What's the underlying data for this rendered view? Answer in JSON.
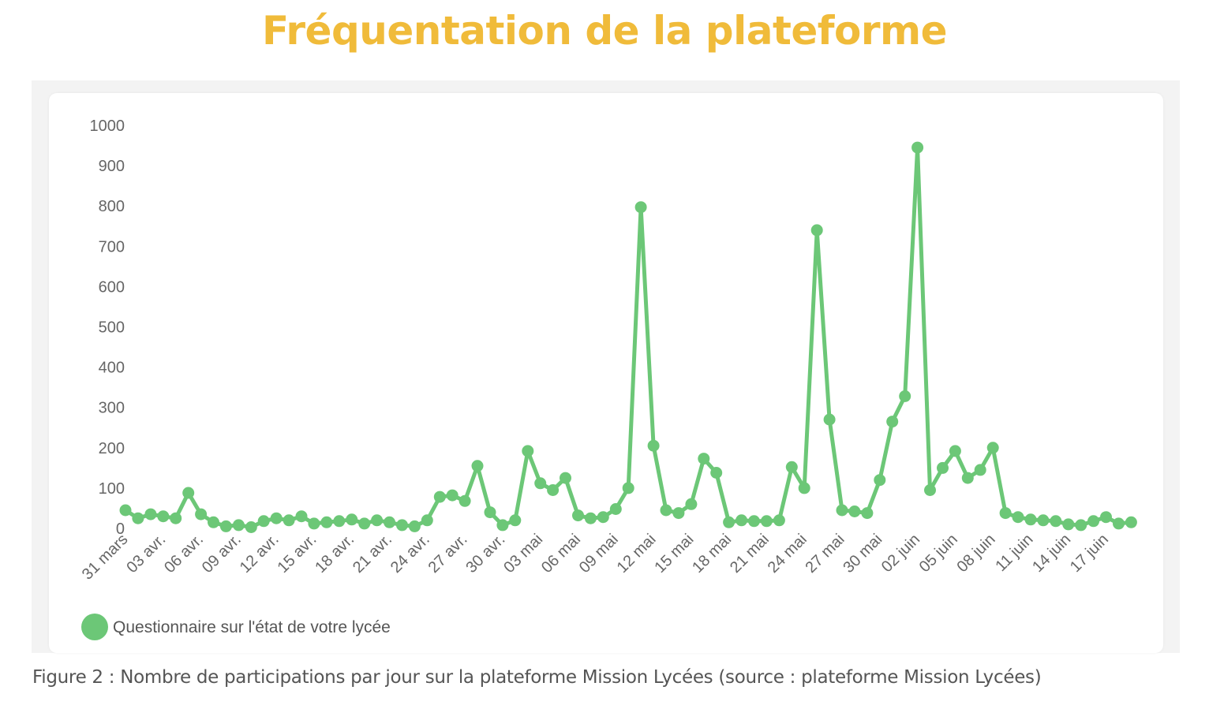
{
  "page": {
    "heading": "Fréquentation de la plateforme",
    "caption": "Figure 2 : Nombre de participations par jour sur la plateforme Mission Lycées (source : plateforme Mission Lycées)"
  },
  "colors": {
    "heading": "#f0bb3a",
    "series": "#6cc777",
    "tick_text": "#666666",
    "legend_text": "#555555"
  },
  "chart_data": {
    "type": "line",
    "title": "",
    "xlabel": "",
    "ylabel": "",
    "ylim": [
      0,
      1000
    ],
    "yticks": [
      0,
      100,
      200,
      300,
      400,
      500,
      600,
      700,
      800,
      900,
      1000
    ],
    "grid": false,
    "legend_position": "bottom-left",
    "x_tick_labels": [
      "31 mars",
      "03 avr.",
      "06 avr.",
      "09 avr.",
      "12 avr.",
      "15 avr.",
      "18 avr.",
      "21 avr.",
      "24 avr.",
      "27 avr.",
      "30 avr.",
      "03 mai",
      "06 mai",
      "09 mai",
      "12 mai",
      "15 mai",
      "18 mai",
      "21 mai",
      "24 mai",
      "27 mai",
      "30 mai",
      "02 juin",
      "05 juin",
      "08 juin",
      "11 juin",
      "14 juin",
      "17 juin"
    ],
    "x_tick_every": 3,
    "series": [
      {
        "name": "Questionnaire sur l'état de votre lycée",
        "values": [
          45,
          25,
          35,
          30,
          25,
          88,
          35,
          15,
          5,
          8,
          3,
          18,
          25,
          20,
          30,
          12,
          15,
          18,
          22,
          12,
          20,
          15,
          8,
          5,
          20,
          78,
          82,
          68,
          155,
          40,
          8,
          20,
          192,
          112,
          95,
          125,
          32,
          25,
          28,
          48,
          100,
          797,
          205,
          45,
          38,
          60,
          173,
          138,
          15,
          20,
          18,
          18,
          20,
          152,
          100,
          740,
          270,
          45,
          42,
          38,
          120,
          265,
          328,
          945,
          95,
          150,
          192,
          125,
          145,
          200,
          38,
          28,
          22,
          20,
          18,
          10,
          8,
          18,
          28,
          12,
          15
        ]
      }
    ]
  }
}
